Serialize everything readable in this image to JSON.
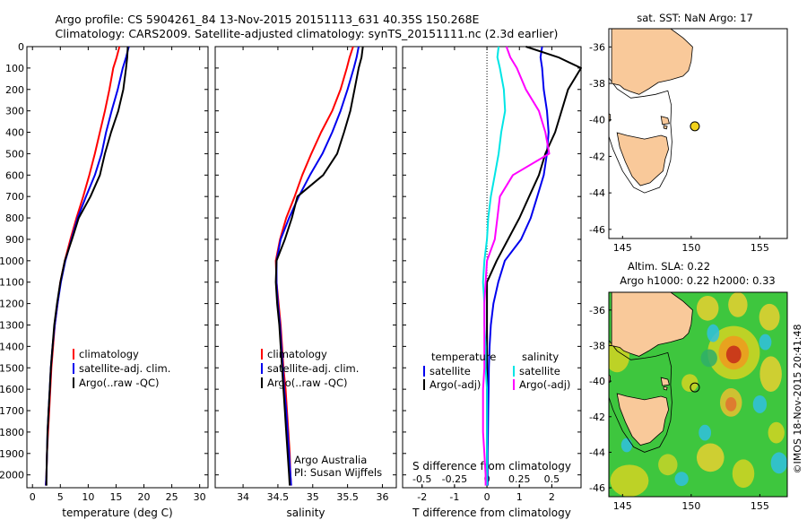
{
  "header": {
    "line1": "Argo profile: CS 5904261_84 13-Nov-2015 20151113_631 40.35S 150.268E",
    "line2": "Climatology: CARS2009. Satellite-adjusted climatology: synTS_20151111.nc (2.3d earlier)"
  },
  "colors": {
    "climatology": "#ff0000",
    "satellite": "#0000ee",
    "argo": "#000000",
    "salinity_satellite": "#00e5e5",
    "salinity_argo": "#ff00ff",
    "land": "#f9c99a",
    "coast_line": "#000000"
  },
  "depth_axis": {
    "ticks": [
      "0",
      "100",
      "200",
      "300",
      "400",
      "500",
      "600",
      "700",
      "800",
      "900",
      "1000",
      "1100",
      "1200",
      "1300",
      "1400",
      "1500",
      "1600",
      "1700",
      "1800",
      "1900",
      "2000"
    ],
    "ylim": [
      0,
      2060
    ]
  },
  "chart_data": [
    {
      "type": "line",
      "xlabel": "temperature (deg C)",
      "xlim": [
        -1,
        31.5
      ],
      "xticks": [
        "0",
        "5",
        "10",
        "15",
        "20",
        "25",
        "30"
      ],
      "legend": [
        "climatology",
        "satellite-adj. clim.",
        "Argo(..raw -QC)"
      ],
      "depth": [
        0,
        50,
        100,
        200,
        300,
        400,
        500,
        600,
        700,
        800,
        900,
        1000,
        1100,
        1200,
        1300,
        1400,
        1500,
        1600,
        1700,
        1800,
        1900,
        2000,
        2050
      ],
      "series": [
        {
          "name": "climatology",
          "values": [
            15.6,
            15.1,
            14.5,
            13.8,
            13.0,
            12.1,
            11.2,
            10.2,
            9.1,
            7.9,
            6.8,
            5.8,
            5.0,
            4.5,
            4.0,
            3.7,
            3.4,
            3.2,
            3.0,
            2.8,
            2.6,
            2.5,
            2.4
          ]
        },
        {
          "name": "satellite-adj. clim.",
          "values": [
            17.3,
            16.8,
            16.2,
            15.3,
            14.2,
            13.2,
            12.4,
            11.2,
            9.6,
            8.1,
            7.0,
            5.9,
            5.1,
            4.5,
            4.0,
            3.6,
            3.3,
            3.1,
            2.9,
            2.7,
            2.6,
            2.5,
            2.4
          ]
        },
        {
          "name": "Argo(..raw -QC)",
          "values": [
            17.1,
            17.0,
            16.8,
            16.3,
            15.4,
            14.1,
            13.0,
            12.1,
            10.4,
            8.3,
            7.1,
            5.8,
            5.0,
            4.4,
            3.9,
            3.6,
            3.3,
            3.1,
            2.9,
            2.7,
            2.6,
            2.5,
            2.5
          ]
        }
      ]
    },
    {
      "type": "line",
      "xlabel": "salinity",
      "xlim": [
        33.6,
        36.2
      ],
      "xticks": [
        "34",
        "34.5",
        "35",
        "35.5",
        "36"
      ],
      "legend": [
        "climatology",
        "satellite-adj. clim.",
        "Argo(..raw -QC)"
      ],
      "annotation": [
        "Argo Australia",
        "PI: Susan Wijffels"
      ],
      "depth": [
        0,
        50,
        100,
        200,
        300,
        400,
        500,
        600,
        700,
        800,
        900,
        1000,
        1100,
        1200,
        1300,
        1400,
        1500,
        1600,
        1700,
        1800,
        1900,
        2000,
        2050
      ],
      "series": [
        {
          "name": "climatology",
          "values": [
            35.58,
            35.53,
            35.49,
            35.4,
            35.28,
            35.12,
            34.98,
            34.85,
            34.74,
            34.62,
            34.53,
            34.47,
            34.48,
            34.51,
            34.54,
            34.56,
            34.58,
            34.61,
            34.63,
            34.65,
            34.67,
            34.68,
            34.69
          ]
        },
        {
          "name": "satellite-adj. clim.",
          "values": [
            35.66,
            35.63,
            35.59,
            35.5,
            35.4,
            35.28,
            35.14,
            34.96,
            34.8,
            34.66,
            34.54,
            34.48,
            34.48,
            34.5,
            34.53,
            34.55,
            34.57,
            34.59,
            34.62,
            34.64,
            34.66,
            34.68,
            34.69
          ]
        },
        {
          "name": "Argo(..raw -QC)",
          "values": [
            35.72,
            35.7,
            35.66,
            35.6,
            35.54,
            35.45,
            35.35,
            35.15,
            34.78,
            34.7,
            34.6,
            34.48,
            34.47,
            34.49,
            34.52,
            34.54,
            34.56,
            34.58,
            34.6,
            34.62,
            34.64,
            34.66,
            34.67
          ]
        }
      ]
    },
    {
      "type": "line",
      "xlabel": "T difference from climatology",
      "xlabel_top": "S difference from climatology",
      "xlim": [
        -2.6,
        2.9
      ],
      "xticks": [
        "-2",
        "-1",
        "0",
        "1",
        "2"
      ],
      "xticks_s": [
        "-0.5",
        "-0.25",
        "0",
        "0.25",
        "0.5"
      ],
      "legend_titles": [
        "temperature",
        "salinity"
      ],
      "legend": [
        "satellite",
        "Argo(-adj)",
        "satellite",
        "Argo(-adj)"
      ],
      "depth": [
        0,
        50,
        100,
        200,
        300,
        400,
        500,
        600,
        700,
        800,
        900,
        1000,
        1100,
        1200,
        1300,
        1400,
        1500,
        1600,
        1700,
        1800,
        1900,
        2000,
        2050
      ],
      "series": [
        {
          "name": "temperature satellite",
          "values": [
            1.7,
            1.65,
            1.7,
            1.75,
            1.85,
            1.9,
            1.85,
            1.75,
            1.55,
            1.35,
            1.05,
            0.55,
            0.35,
            0.2,
            0.12,
            0.08,
            0.06,
            0.05,
            0.04,
            0.03,
            0.02,
            0.02,
            0.02
          ]
        },
        {
          "name": "temperature Argo(-adj)",
          "values": [
            1.2,
            2.2,
            2.9,
            2.5,
            2.3,
            2.1,
            1.8,
            1.6,
            1.3,
            1.0,
            0.65,
            0.3,
            0.0,
            0.0,
            0.0,
            0.0,
            0.0,
            0.0,
            0.0,
            0.0,
            0.0,
            0.0,
            0.0
          ]
        },
        {
          "name": "salinity satellite",
          "values": [
            0.09,
            0.08,
            0.1,
            0.13,
            0.14,
            0.11,
            0.09,
            0.06,
            0.03,
            0.01,
            0.0,
            -0.02,
            -0.03,
            -0.02,
            -0.02,
            -0.01,
            -0.01,
            0.0,
            0.0,
            0.0,
            0.0,
            0.0,
            0.0
          ]
        },
        {
          "name": "salinity Argo(-adj)",
          "values": [
            0.15,
            0.18,
            0.23,
            0.3,
            0.4,
            0.45,
            0.48,
            0.2,
            0.1,
            0.08,
            0.06,
            0.0,
            -0.01,
            -0.02,
            -0.02,
            -0.02,
            -0.02,
            -0.03,
            -0.03,
            -0.03,
            -0.02,
            -0.01,
            -0.01
          ]
        }
      ]
    }
  ],
  "map_top": {
    "title": "sat. SST: NaN Argo: 17",
    "xlim": [
      144,
      157
    ],
    "ylim": [
      -46.5,
      -35
    ],
    "xticks": [
      "145",
      "150",
      "155"
    ],
    "yticks": [
      "-36",
      "-38",
      "-40",
      "-42",
      "-44",
      "-46"
    ],
    "float_position": [
      150.268,
      -40.35
    ],
    "float_color": "#f2d21b"
  },
  "map_bottom": {
    "title_line1": "Altim. SLA: 0.22",
    "title_line2": "Argo h1000: 0.22 h2000: 0.33",
    "xlim": [
      144,
      157
    ],
    "ylim": [
      -46.5,
      -35
    ],
    "xticks": [
      "145",
      "150",
      "155"
    ],
    "yticks": [
      "-36",
      "-38",
      "-40",
      "-42",
      "-44",
      "-46"
    ],
    "float_position": [
      150.268,
      -40.35
    ],
    "credit": "©IMOS 18-Nov-2015 20:41:48"
  }
}
